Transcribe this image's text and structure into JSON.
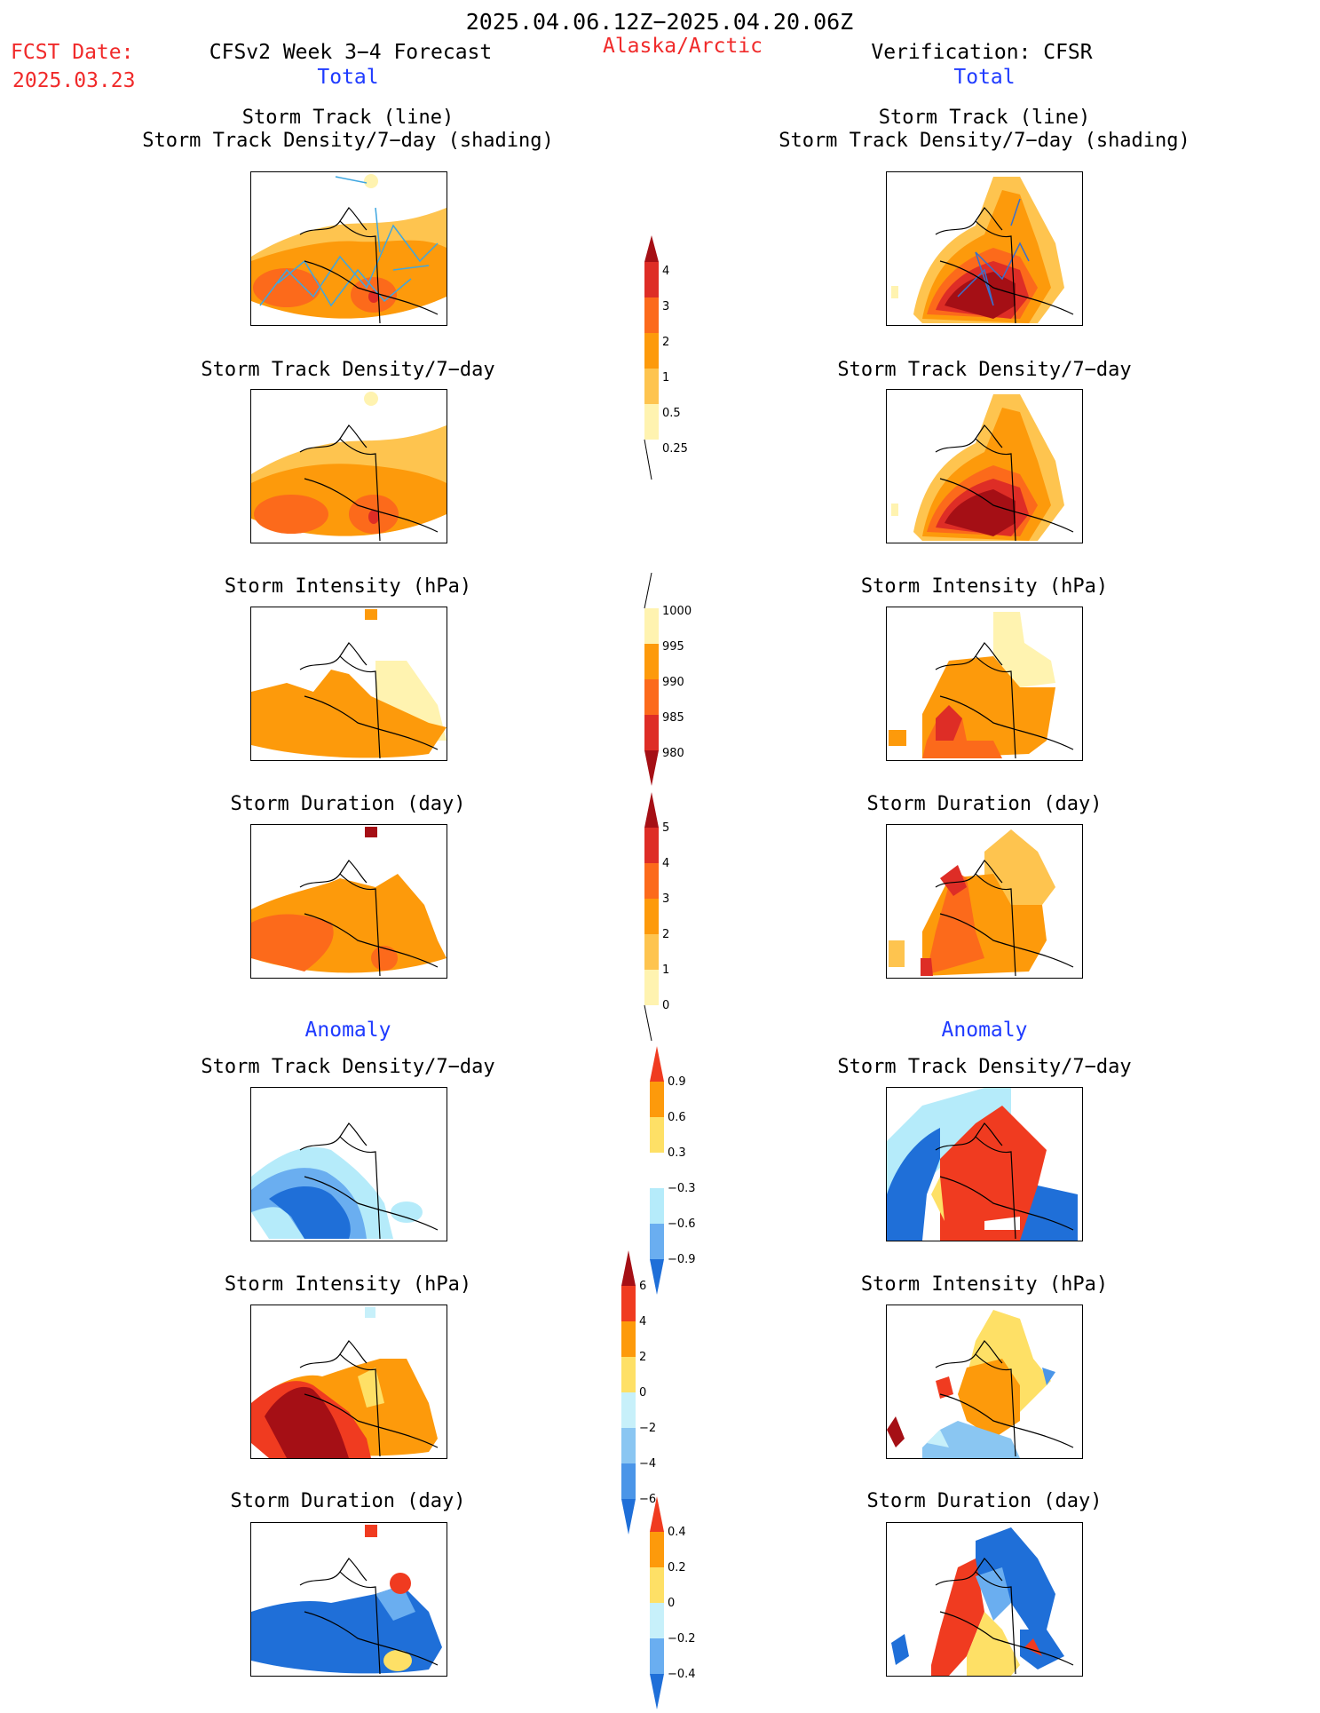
{
  "header": {
    "period": "2025.04.06.12Z−2025.04.20.06Z",
    "fcst_label": "FCST Date:",
    "fcst_date": "2025.03.23",
    "model": "CFSv2 Week 3−4 Forecast",
    "region": "Alaska/Arctic",
    "verification": "Verification: CFSR"
  },
  "left_column": {
    "section_total": "Total",
    "section_anomaly": "Anomaly",
    "titles": {
      "track_line": "Storm Track (line)",
      "track_shading": "Storm Track Density/7−day (shading)",
      "density": "Storm Track Density/7−day",
      "intensity": "Storm Intensity (hPa)",
      "duration": "Storm Duration (day)",
      "anom_density": "Storm Track Density/7−day",
      "anom_intensity": "Storm Intensity (hPa)",
      "anom_duration": "Storm Duration (day)"
    }
  },
  "right_column": {
    "section_total": "Total",
    "section_anomaly": "Anomaly",
    "titles": {
      "track_line": "Storm Track (line)",
      "track_shading": "Storm Track Density/7−day (shading)",
      "density": "Storm Track Density/7−day",
      "intensity": "Storm Intensity (hPa)",
      "duration": "Storm Duration (day)",
      "anom_density": "Storm Track Density/7−day",
      "anom_intensity": "Storm Intensity (hPa)",
      "anom_duration": "Storm Duration (day)"
    }
  },
  "colorbars": {
    "density": {
      "labels": [
        "4",
        "3",
        "2",
        "1",
        "0.5",
        "0.25"
      ],
      "colors": [
        "#a50f15",
        "#de2d26",
        "#fc6a1b",
        "#fd9a0b",
        "#fec44f",
        "#fff3b0"
      ]
    },
    "intensity": {
      "labels": [
        "1000",
        "995",
        "990",
        "985",
        "980"
      ],
      "colors": [
        "#fff3b0",
        "#fd9a0b",
        "#fc6a1b",
        "#de2d26",
        "#a50f15"
      ]
    },
    "duration": {
      "labels": [
        "5",
        "4",
        "3",
        "2",
        "1",
        "0"
      ],
      "colors": [
        "#a50f15",
        "#de2d26",
        "#fc6a1b",
        "#fd9a0b",
        "#fec44f",
        "#fff3b0"
      ]
    },
    "anom_density": {
      "labels": [
        "0.9",
        "0.6",
        "0.3",
        "−0.3",
        "−0.6",
        "−0.9"
      ],
      "colors": [
        "#f03b20",
        "#fd9a0b",
        "#fee066",
        "#ffffff",
        "#b5ebfa",
        "#6aaef0",
        "#1f6fd8"
      ]
    },
    "anom_intensity": {
      "labels": [
        "6",
        "4",
        "2",
        "0",
        "−2",
        "−4",
        "−6"
      ],
      "colors": [
        "#a50f15",
        "#f03b20",
        "#fd9a0b",
        "#fee066",
        "#c7f0fa",
        "#8ac6f2",
        "#4a95e8",
        "#1f6fd8"
      ]
    },
    "anom_duration": {
      "labels": [
        "0.4",
        "0.2",
        "0",
        "−0.2",
        "−0.4"
      ],
      "colors": [
        "#f03b20",
        "#fd9a0b",
        "#fee066",
        "#c7f0fa",
        "#6aaef0",
        "#1f6fd8"
      ]
    }
  }
}
